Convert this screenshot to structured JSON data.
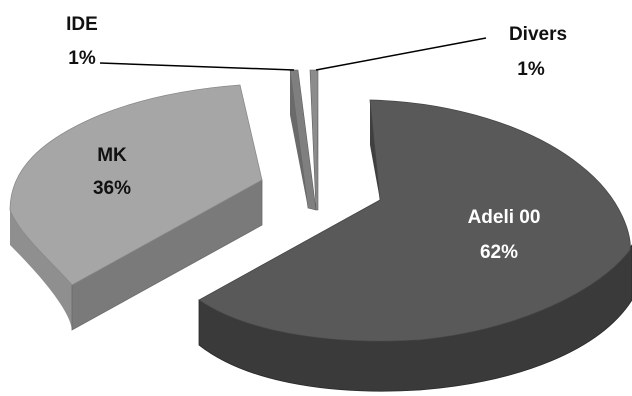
{
  "chart_data": {
    "type": "pie",
    "style": "3d-exploded",
    "slices": [
      {
        "name": "Adeli 00",
        "percent_label": "62%",
        "value": 62,
        "color": "#595959"
      },
      {
        "name": "MK",
        "percent_label": "36%",
        "value": 36,
        "color": "#a6a6a6"
      },
      {
        "name": "IDE",
        "percent_label": "1%",
        "value": 1,
        "color": "#7f7f7f"
      },
      {
        "name": "Divers",
        "percent_label": "1%",
        "value": 1,
        "color": "#8c8c8c"
      }
    ],
    "legend": "none"
  }
}
